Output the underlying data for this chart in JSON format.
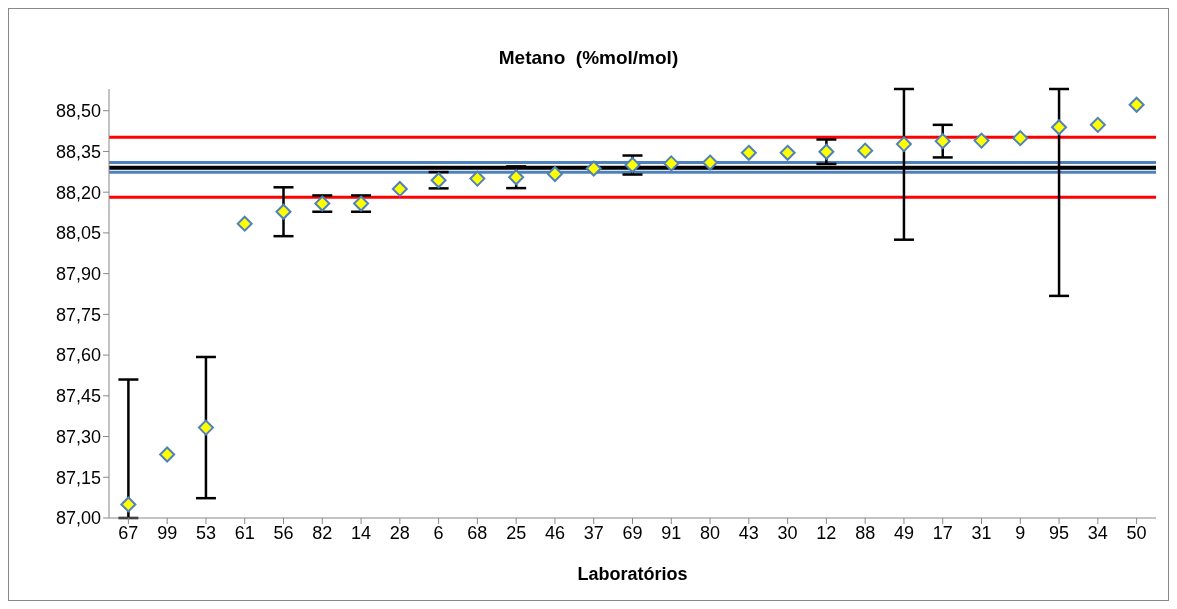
{
  "chart_data": {
    "type": "scatter",
    "title": "Metano  (%mol/mol)",
    "xlabel": "Laboratórios",
    "categories": [
      "67",
      "99",
      "53",
      "61",
      "56",
      "82",
      "14",
      "28",
      "6",
      "68",
      "25",
      "46",
      "37",
      "69",
      "91",
      "80",
      "43",
      "30",
      "12",
      "88",
      "49",
      "17",
      "31",
      "9",
      "95",
      "34",
      "50"
    ],
    "series": [
      {
        "color": "#ffff00",
        "values": [
          87.05,
          87.234,
          87.333,
          88.084,
          88.128,
          88.158,
          88.158,
          88.212,
          88.244,
          88.25,
          88.255,
          88.267,
          88.287,
          88.3,
          88.306,
          88.309,
          88.345,
          88.345,
          88.349,
          88.353,
          88.377,
          88.388,
          88.39,
          88.399,
          88.439,
          88.448,
          88.522
        ],
        "errors": [
          [
            87.0,
            87.51
          ],
          null,
          0.26,
          null,
          0.09,
          0.03,
          0.03,
          null,
          0.03,
          null,
          0.04,
          null,
          null,
          0.035,
          null,
          null,
          null,
          null,
          0.045,
          null,
          [
            88.025,
            88.58
          ],
          0.06,
          null,
          null,
          [
            87.818,
            88.58
          ],
          null,
          null
        ]
      }
    ],
    "marker": "diamond",
    "ylim": [
      87.0,
      88.58
    ],
    "yticks": [
      {
        "value": 87.0,
        "label": "87,00"
      },
      {
        "value": 87.15,
        "label": "87,15"
      },
      {
        "value": 87.3,
        "label": "87,30"
      },
      {
        "value": 87.45,
        "label": "87,45"
      },
      {
        "value": 87.6,
        "label": "87,60"
      },
      {
        "value": 87.75,
        "label": "87,75"
      },
      {
        "value": 87.9,
        "label": "87,90"
      },
      {
        "value": 88.05,
        "label": "88,05"
      },
      {
        "value": 88.2,
        "label": "88,20"
      },
      {
        "value": 88.35,
        "label": "88,35"
      },
      {
        "value": 88.5,
        "label": "88,50"
      }
    ],
    "ref_lines": [
      {
        "axis": "y",
        "value": 88.309,
        "color": "#4f81bd"
      },
      {
        "axis": "y",
        "value": 88.273,
        "color": "#4f81bd"
      },
      {
        "axis": "y",
        "value": 88.29,
        "color": "#000000"
      },
      {
        "axis": "y",
        "value": 88.402,
        "color": "#ff0000"
      },
      {
        "axis": "y",
        "value": 88.181,
        "color": "#ff0000"
      }
    ],
    "grid": false
  }
}
